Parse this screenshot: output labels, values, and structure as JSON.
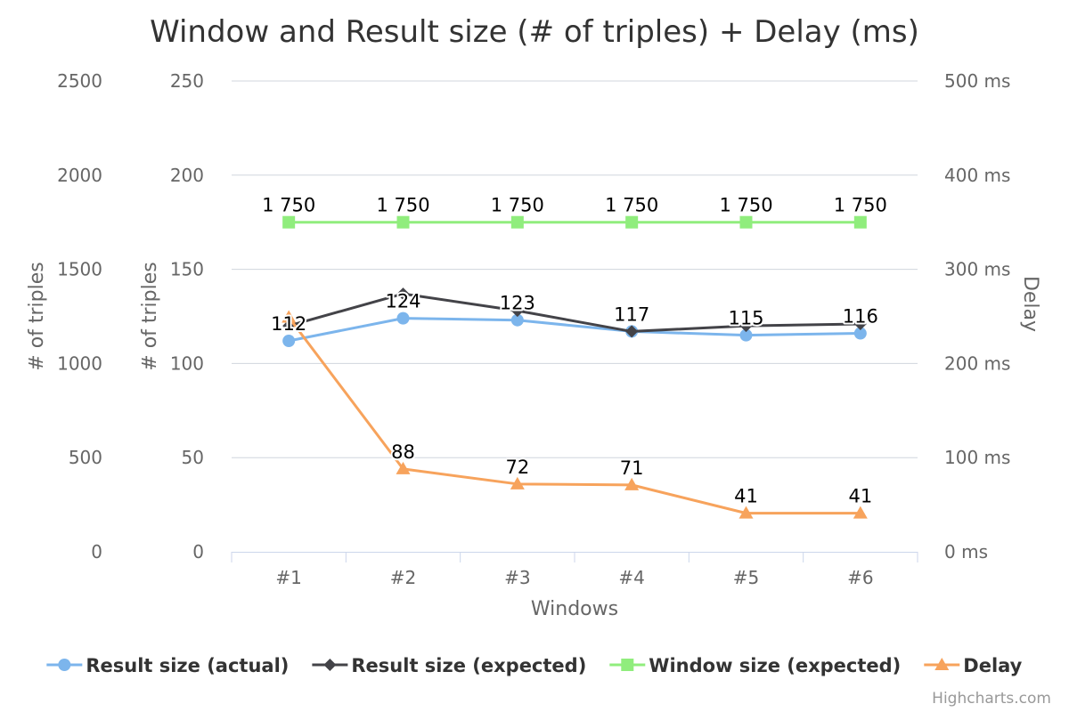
{
  "chart_data": {
    "type": "line",
    "title": "Window and Result size (# of triples) + Delay (ms)",
    "xlabel": "Windows",
    "categories": [
      "#1",
      "#2",
      "#3",
      "#4",
      "#5",
      "#6"
    ],
    "y_axes": [
      {
        "id": "window",
        "title": "# of triples",
        "min": 0,
        "max": 2500,
        "ticks": [
          "0",
          "500",
          "1000",
          "1500",
          "2000",
          "2500"
        ]
      },
      {
        "id": "result",
        "title": "# of triples",
        "min": 0,
        "max": 250,
        "ticks": [
          "0",
          "50",
          "100",
          "150",
          "200",
          "250"
        ]
      },
      {
        "id": "delay",
        "title": "Delay",
        "min": 0,
        "max": 500,
        "opposite": true,
        "ticks": [
          "0 ms",
          "100 ms",
          "200 ms",
          "300 ms",
          "400 ms",
          "500 ms"
        ]
      }
    ],
    "series": [
      {
        "name": "Result size (actual)",
        "axis": "result",
        "color": "#7cb5ec",
        "marker": "circle",
        "values": [
          112,
          124,
          123,
          117,
          115,
          116
        ],
        "labels": [
          "112",
          "124",
          "123",
          "117",
          "115",
          "116"
        ]
      },
      {
        "name": "Result size (expected)",
        "axis": "result",
        "color": "#434348",
        "marker": "diamond",
        "values": [
          120,
          137,
          128,
          117,
          120,
          121
        ],
        "labels": []
      },
      {
        "name": "Window size (expected)",
        "axis": "window",
        "color": "#90ed7d",
        "marker": "square",
        "values": [
          1750,
          1750,
          1750,
          1750,
          1750,
          1750
        ],
        "labels": [
          "1 750",
          "1 750",
          "1 750",
          "1 750",
          "1 750",
          "1 750"
        ]
      },
      {
        "name": "Delay",
        "axis": "delay",
        "color": "#f7a35c",
        "marker": "triangle",
        "values": [
          249,
          88,
          72,
          71,
          41,
          41
        ],
        "labels": [
          "",
          "88",
          "72",
          "71",
          "41",
          "41"
        ]
      }
    ],
    "grid": true,
    "legend_position": "bottom-center",
    "credits": "Highcharts.com"
  }
}
